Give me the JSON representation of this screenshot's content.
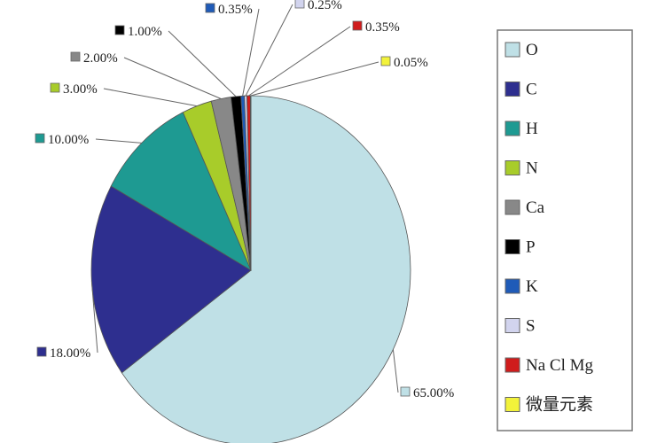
{
  "chart_data": {
    "type": "pie",
    "title": "",
    "legend_placement": "right",
    "categories": [
      "O",
      "C",
      "H",
      "N",
      "Ca",
      "P",
      "K",
      "S",
      "Na Cl Mg",
      "微量元素"
    ],
    "values": [
      65.0,
      18.0,
      10.0,
      3.0,
      2.0,
      1.0,
      0.35,
      0.25,
      0.35,
      0.05
    ],
    "data_labels": [
      "65.00%",
      "18.00%",
      "10.00%",
      "3.00%",
      "2.00%",
      "1.00%",
      "0.35%",
      "0.25%",
      "0.35%",
      "0.05%"
    ],
    "colors": [
      "#bfe0e6",
      "#2e2f8f",
      "#1e9a92",
      "#a8cc2a",
      "#888888",
      "#000000",
      "#1f5bb8",
      "#d2d4ee",
      "#d01c1c",
      "#f2f23a"
    ]
  }
}
